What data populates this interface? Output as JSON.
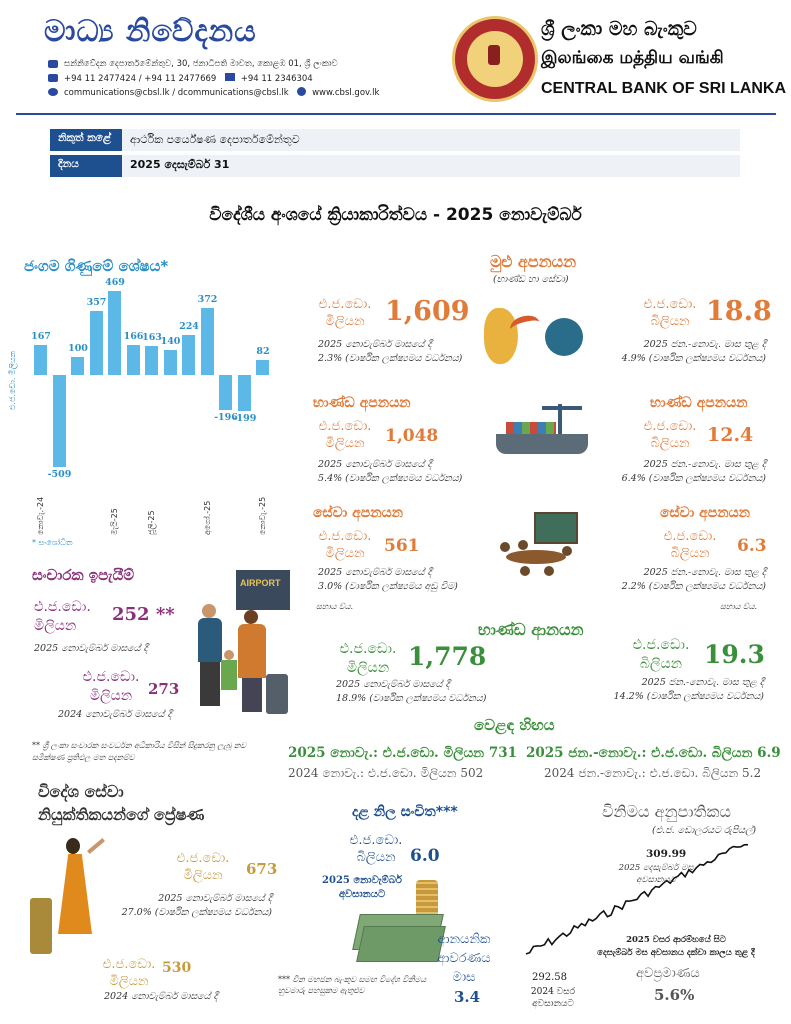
{
  "header": {
    "title": "මාධ්‍ය නිවේදනය",
    "address": "සන්නිවේදන දෙපාර්තමේන්තුව, 30, ජනාධිපති මාවත, කොළඹ 01, ශ්‍රී ලංකාව",
    "phone": "+94 11 2477424 / +94 11 2477669",
    "fax": "+94 11  2346304",
    "email": "communications@cbsl.lk / dcommunications@cbsl.lk",
    "web": "www.cbsl.gov.lk",
    "bank_si": "ශ්‍රී ලංකා මහ බැංකුව",
    "bank_ta": "இலங்கை மத்திய வங்கி",
    "bank_en": "CENTRAL BANK OF SRI LANKA"
  },
  "meta": {
    "issuer_label": "නිකුත් කළේ",
    "issuer_value": "ආර්ථික පර්යේෂණ දෙපාර්තමේන්තුව",
    "date_label": "දිනය",
    "date_value": "2025 දෙසැම්බර් 31"
  },
  "main_title": "විදේශීය අංශයේ ක්‍රියාකාරිත්වය - 2025 නොවැම්බර්",
  "current_account": {
    "title": "ජංගම ගිණුමේ ශේෂය*",
    "ylabel": "එ.ජ.ඩො. මිලියන",
    "footnote": "* සංශෝධිත",
    "tick_labels": [
      "නොවැ.-24",
      "මැයි-25",
      "ජූලි-25",
      "අගෝ.-25",
      "නොවැ.-25"
    ]
  },
  "chart_data": {
    "type": "bar",
    "title": "ජංගම ගිණුමේ ශේෂය*",
    "ylabel": "එ.ජ.ඩො. මිලියන",
    "values": [
      167,
      -509,
      100,
      357,
      469,
      166,
      163,
      140,
      224,
      372,
      -196,
      -199,
      82
    ],
    "labels": [
      "167",
      "-509",
      "100",
      "357",
      "469",
      "166",
      "163",
      "140",
      "224",
      "372",
      "-196",
      "-199",
      "82"
    ]
  },
  "total_exports": {
    "title": "මුළු අපනයන",
    "subtitle": "(භාණ්ඩ හා සේවා)",
    "m_unit1": "එ.ජ.ඩො.",
    "m_unit2": "මිලියන",
    "m_value": "1,609",
    "m_note1": "2025 නොවැම්බර් මාසයේ දී",
    "m_note2": "2.3% (වාර්ෂික ලක්ෂ්‍යමය වර්ධනය)",
    "b_unit1": "එ.ජ.ඩො.",
    "b_unit2": "බිලියන",
    "b_value": "18.8",
    "b_note1": "2025 ජන.-නොවැ. මාස තුළ දී",
    "b_note2": "4.9% (වාර්ෂික ලක්ෂ්‍යමය වර්ධනය)"
  },
  "goods_exports": {
    "title_left": "භාණ්ඩ අපනයන",
    "title_right": "භාණ්ඩ අපනයන",
    "m_unit1": "එ.ජ.ඩො.",
    "m_unit2": "මිලියන",
    "m_value": "1,048",
    "m_note1": "2025 නොවැම්බර් මාසයේ දී",
    "m_note2": "5.4% (වාර්ෂික ලක්ෂ්‍යමය වර්ධනය)",
    "b_unit1": "එ.ජ.ඩො.",
    "b_unit2": "බිලියන",
    "b_value": "12.4",
    "b_note1": "2025 ජන.-නොවැ. මාස තුළ දී",
    "b_note2": "6.4% (වාර්ෂික ලක්ෂ්‍යමය වර්ධනය)"
  },
  "service_exports": {
    "title_left": "සේවා අපනයන",
    "title_right": "සේවා අපනයන",
    "m_unit1": "එ.ජ.ඩො.",
    "m_unit2": "මිලියන",
    "m_value": "561",
    "m_note1": "2025 නොවැම්බර් මාසයේ දී",
    "m_note2": "3.0% (වාර්ෂික ලක්ෂ්‍යමය අඩු වීම)",
    "b_unit1": "එ.ජ.ඩො.",
    "b_unit2": "බිලියන",
    "b_value": "6.3",
    "b_note1": "2025 ජන.-නොවැ. මාස තුළ දී",
    "b_note2": "2.2% (වාර්ෂික ලක්ෂ්‍යමය වර්ධනය)",
    "est_left": "සහාය ව්ය.",
    "est_right": "සහාය ව්ය."
  },
  "imports": {
    "title": "භාණ්ඩ ආනයන",
    "m_unit1": "එ.ජ.ඩො.",
    "m_unit2": "මිලියන",
    "m_value": "1,778",
    "m_note1": "2025 නොවැම්බර් මාසයේ දී",
    "m_note2": "18.9% (වාර්ෂික ලක්ෂ්‍යමය වර්ධනය)",
    "b_unit1": "එ.ජ.ඩො.",
    "b_unit2": "බිලියන",
    "b_value": "19.3",
    "b_note1": "2025 ජන.-නොවැ. මාස තුළ දී",
    "b_note2": "14.2% (වාර්ෂික ලක්ෂ්‍යමය වර්ධනය)"
  },
  "trade_balance": {
    "title": "වෙළඳ හිඟය",
    "line1_left": "2025 නොවැ.: එ.ජ.ඩො. මිලියන 731",
    "line2_left": "2024 නොවැ.: එ.ජ.ඩො. මිලියන 502",
    "line1_right": "2025 ජන.-නොවැ.: එ.ජ.ඩො. බිලියන 6.9",
    "line2_right": "2024 ජන.-නොවැ.: එ.ජ.ඩො. බිලියන 5.2"
  },
  "tourism": {
    "title": "සංචාරක ඉපැයීම්",
    "a_unit1": "එ.ජ.ඩො.",
    "a_unit2": "මිලියන",
    "a_value": "252 **",
    "a_note": "2025 නොවැම්බර් මාසයේ දී",
    "b_unit1": "එ.ජ.ඩො.",
    "b_unit2": "මිලියන",
    "b_value": "273",
    "b_note": "2024 නොවැම්බර් මාසයේ දී",
    "footnote": "** ශ්‍රී ලංකා සංචාරක සංවර්ධන අධිකාරිය විසින් සිදුකරනු ලැබූ නව සමීක්ෂණ ප්‍රතිඵල මත පදනම්ව",
    "airport_sign": "AIRPORT"
  },
  "remittances": {
    "title1": "විදේශ සේවා",
    "title2": "නියුක්තිකයන්ගේ ප්‍රේෂණ",
    "a_unit1": "එ.ජ.ඩො.",
    "a_unit2": "මිලියන",
    "a_value": "673",
    "a_note1": "2025 නොවැම්බර් මාසයේ දී",
    "a_note2": "27.0% (වාර්ෂික ලක්ෂ්‍යමය වර්ධනය)",
    "b_unit1": "එ.ජ.ඩො.",
    "b_unit2": "මිලියන",
    "b_value": "530",
    "b_note": "2024 නොවැම්බර් මාසයේ දී"
  },
  "reserves": {
    "title": "දළ නිල සංචිත***",
    "unit1": "එ.ජ.ඩො.",
    "unit2": "බිලියන",
    "value": "6.0",
    "note1": "2025 නොවැම්බර්",
    "note2": "අවසානයට",
    "cover1": "ආනයනික",
    "cover2": "ආවරණය",
    "cover3": "මාස",
    "cover_value": "3.4",
    "footnote": "*** චීන මහජන බැංකුව සමඟ විදේශ විනිමය හුවමාරු පහසුකම ඇතුළුව"
  },
  "exchange_rate": {
    "title": "විනිමය අනුපාතිකය",
    "subtitle": "(එ.ජ. ඩොලරයට රුපියල්)",
    "end_value": "309.99",
    "end_note1": "2025 දෙසැම්බර් මස",
    "end_note2": "අවසානයට",
    "start_value": "292.58",
    "start_note1": "2024 වසර",
    "start_note2": "අවසානයට",
    "depr_note1": "2025 වසර ආරම්භයේ සිට",
    "depr_note2": "දෙසැම්බර් මස අවසානය දක්වා කාලය තුළ දී",
    "depr_label": "අවප්‍රමාණය",
    "depr_value": "5.6%"
  },
  "colors": {
    "brand_blue": "#2a4aa0",
    "bar_blue": "#5cb8e6",
    "orange": "#e07b39",
    "green": "#3a8f3a",
    "gold": "#c89a3b"
  }
}
